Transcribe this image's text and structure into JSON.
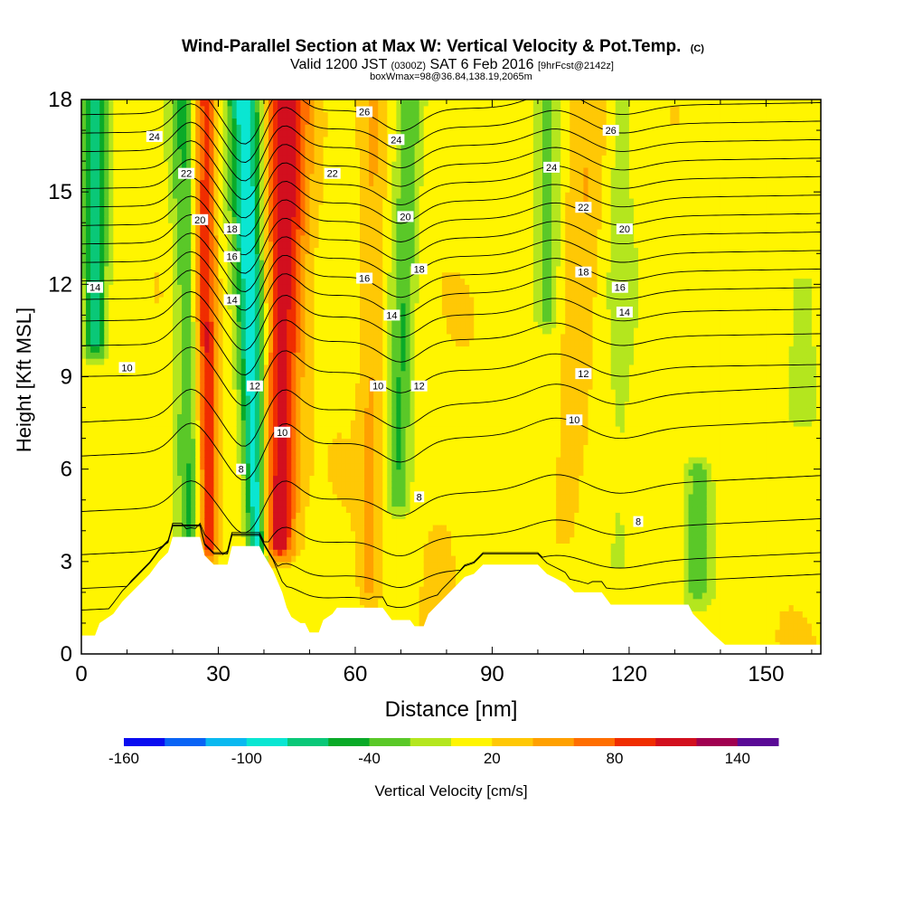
{
  "chart_data": {
    "type": "heatmap",
    "title": "Wind-Parallel Section at Max W: Vertical Velocity & Pot.Temp.",
    "title_mark": "(C)",
    "subtitle_parts": {
      "main1": "Valid 1200 JST ",
      "small1": "(0300Z)",
      "main2": " SAT 6 Feb 2016 ",
      "small2": "[9hrFcst@2142z]"
    },
    "subtitle2": "boxWmax=98@36.84,138.19,2065m",
    "xlabel": "Distance [nm]",
    "ylabel": "Height [Kft MSL]",
    "xlim": [
      0,
      162
    ],
    "ylim": [
      0,
      18
    ],
    "xticks": [
      0,
      30,
      60,
      90,
      120,
      150
    ],
    "yticks": [
      0,
      3,
      6,
      9,
      12,
      15,
      18
    ],
    "colorbar": {
      "label": "Vertical Velocity [cm/s]",
      "tick_labels": [
        "-160",
        "-100",
        "-40",
        "20",
        "80",
        "140"
      ],
      "tick_values": [
        -160,
        -100,
        -40,
        20,
        80,
        140
      ],
      "min": -160,
      "max": 160,
      "step": 20,
      "colors": [
        "#0a0cf0",
        "#0a64f5",
        "#0ab9f0",
        "#0ae6d2",
        "#0ac878",
        "#0aaa28",
        "#5ac828",
        "#b4e61e",
        "#fff500",
        "#ffc805",
        "#ffa000",
        "#ff6e00",
        "#f02d00",
        "#d20f1e",
        "#a00050",
        "#5a0a96"
      ]
    },
    "terrain_height_kft": [
      [
        0,
        0.6
      ],
      [
        3,
        0.6
      ],
      [
        4,
        1.0
      ],
      [
        7,
        1.3
      ],
      [
        9,
        1.7
      ],
      [
        11,
        2.0
      ],
      [
        13,
        2.3
      ],
      [
        15,
        2.6
      ],
      [
        17,
        3.0
      ],
      [
        19,
        3.3
      ],
      [
        20,
        3.8
      ],
      [
        26,
        3.8
      ],
      [
        27,
        3.2
      ],
      [
        29,
        2.9
      ],
      [
        32,
        2.9
      ],
      [
        33,
        3.5
      ],
      [
        39,
        3.5
      ],
      [
        40,
        3.2
      ],
      [
        42,
        2.7
      ],
      [
        44,
        2.0
      ],
      [
        45,
        1.5
      ],
      [
        46,
        1.2
      ],
      [
        48,
        1.0
      ],
      [
        49,
        1.0
      ],
      [
        50,
        0.7
      ],
      [
        52,
        0.7
      ],
      [
        53,
        1.1
      ],
      [
        55,
        1.3
      ],
      [
        56,
        1.5
      ],
      [
        60,
        1.5
      ],
      [
        62,
        1.5
      ],
      [
        66,
        1.5
      ],
      [
        68,
        1.1
      ],
      [
        72,
        1.1
      ],
      [
        73,
        0.9
      ],
      [
        75,
        0.9
      ],
      [
        76,
        1.3
      ],
      [
        78,
        1.6
      ],
      [
        80,
        1.9
      ],
      [
        82,
        2.2
      ],
      [
        84,
        2.5
      ],
      [
        86,
        2.6
      ],
      [
        88,
        2.9
      ],
      [
        100,
        2.9
      ],
      [
        102,
        2.6
      ],
      [
        106,
        2.3
      ],
      [
        108,
        2.0
      ],
      [
        114,
        2.0
      ],
      [
        116,
        1.6
      ],
      [
        133,
        1.6
      ],
      [
        134,
        1.3
      ],
      [
        136,
        1.0
      ],
      [
        138,
        0.7
      ],
      [
        141,
        0.3
      ],
      [
        161,
        0.3
      ]
    ],
    "updraft_bands": [
      {
        "x_top": 45,
        "x_bot": 43,
        "half_width_top": 5,
        "half_width_bot": 3,
        "z_min": 3.5,
        "z_max": 18,
        "w": 100
      },
      {
        "x_top": 27,
        "x_bot": 28,
        "half_width_top": 2.5,
        "half_width_bot": 1.5,
        "z_min": 3.5,
        "z_max": 18,
        "w": 85
      },
      {
        "x_top": 64,
        "x_bot": 63,
        "half_width_top": 3,
        "half_width_bot": 2,
        "z_min": 2,
        "z_max": 18,
        "w": 30
      },
      {
        "x_top": 112,
        "x_bot": 104,
        "half_width_top": 4,
        "half_width_bot": 2,
        "z_min": 4,
        "z_max": 18,
        "w": 25
      },
      {
        "x_top": 80,
        "x_bot": 78,
        "half_width_top": 4,
        "half_width_bot": 4,
        "z_min": 1,
        "z_max": 4,
        "w": 22
      }
    ],
    "downdraft_bands": [
      {
        "x_top": 36,
        "x_bot": 39,
        "half_width_top": 4,
        "half_width_bot": 1.5,
        "z_min": 3,
        "z_max": 18,
        "w": -110
      },
      {
        "x_top": 22,
        "x_bot": 24,
        "half_width_top": 3,
        "half_width_bot": 2,
        "z_min": 3,
        "z_max": 18,
        "w": -50
      },
      {
        "x_top": 3,
        "x_bot": 3,
        "half_width_top": 3,
        "half_width_bot": 1.5,
        "z_min": 10,
        "z_max": 18,
        "w": -80
      },
      {
        "x_top": 72,
        "x_bot": 68,
        "half_width_top": 3,
        "half_width_bot": 2,
        "z_min": 5,
        "z_max": 18,
        "w": -50
      },
      {
        "x_top": 102,
        "x_bot": 102,
        "half_width_top": 3,
        "half_width_bot": 2,
        "z_min": 11,
        "z_max": 18,
        "w": -40
      },
      {
        "x_top": 135,
        "x_bot": 135,
        "half_width_top": 3,
        "half_width_bot": 3,
        "z_min": 2,
        "z_max": 6,
        "w": -40
      },
      {
        "x_top": 158,
        "x_bot": 158,
        "half_width_top": 3,
        "half_width_bot": 3,
        "z_min": 8,
        "z_max": 12,
        "w": -25
      },
      {
        "x_top": 118,
        "x_bot": 118,
        "half_width_top": 3,
        "half_width_bot": 3,
        "z_min": 3,
        "z_max": 18,
        "w": -20
      }
    ],
    "theta_contours_kft_at_left_edge": [
      2.0,
      2.7,
      3.8,
      5.2,
      7.0,
      8.1,
      9.2,
      10.2,
      11.0,
      11.7,
      12.3,
      12.9,
      13.5,
      14.1,
      14.7,
      15.3,
      15.9,
      16.5,
      17.1,
      17.7
    ],
    "contour_labels": [
      {
        "text": "24",
        "x": 16,
        "z": 16.8
      },
      {
        "text": "22",
        "x": 23,
        "z": 15.6
      },
      {
        "text": "20",
        "x": 26,
        "z": 14.1
      },
      {
        "text": "18",
        "x": 33,
        "z": 13.8
      },
      {
        "text": "16",
        "x": 33,
        "z": 12.9
      },
      {
        "text": "14",
        "x": 33,
        "z": 11.5
      },
      {
        "text": "14",
        "x": 3,
        "z": 11.9
      },
      {
        "text": "10",
        "x": 10,
        "z": 9.3
      },
      {
        "text": "12",
        "x": 38,
        "z": 8.7
      },
      {
        "text": "10",
        "x": 44,
        "z": 7.2
      },
      {
        "text": "8",
        "x": 35,
        "z": 6.0
      },
      {
        "text": "26",
        "x": 62,
        "z": 17.6
      },
      {
        "text": "24",
        "x": 69,
        "z": 16.7
      },
      {
        "text": "22",
        "x": 55,
        "z": 15.6
      },
      {
        "text": "20",
        "x": 71,
        "z": 14.2
      },
      {
        "text": "18",
        "x": 74,
        "z": 12.5
      },
      {
        "text": "16",
        "x": 62,
        "z": 12.2
      },
      {
        "text": "14",
        "x": 68,
        "z": 11.0
      },
      {
        "text": "10",
        "x": 65,
        "z": 8.7
      },
      {
        "text": "12",
        "x": 74,
        "z": 8.7
      },
      {
        "text": "8",
        "x": 74,
        "z": 5.1
      },
      {
        "text": "26",
        "x": 116,
        "z": 17.0
      },
      {
        "text": "24",
        "x": 103,
        "z": 15.8
      },
      {
        "text": "22",
        "x": 110,
        "z": 14.5
      },
      {
        "text": "20",
        "x": 119,
        "z": 13.8
      },
      {
        "text": "18",
        "x": 110,
        "z": 12.4
      },
      {
        "text": "16",
        "x": 118,
        "z": 11.9
      },
      {
        "text": "14",
        "x": 119,
        "z": 11.1
      },
      {
        "text": "12",
        "x": 110,
        "z": 9.1
      },
      {
        "text": "10",
        "x": 108,
        "z": 7.6
      },
      {
        "text": "8",
        "x": 122,
        "z": 4.3
      }
    ]
  }
}
